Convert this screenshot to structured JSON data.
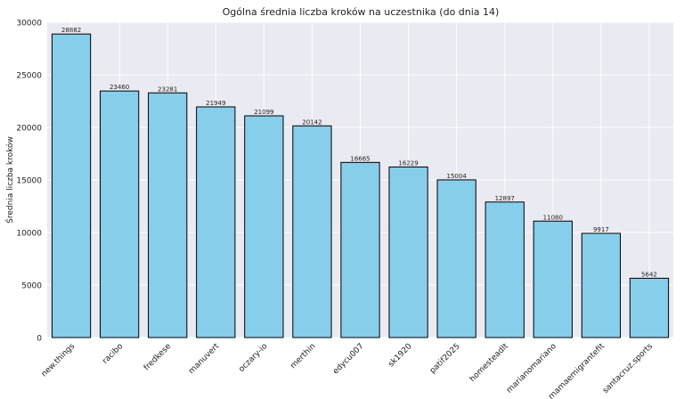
{
  "chart_data": {
    "type": "bar",
    "title": "Ogólna średnia liczba kroków na uczestnika (do dnia 14)",
    "xlabel": "",
    "ylabel": "Średnia liczba kroków",
    "ylim": [
      0,
      30000
    ],
    "yticks": [
      0,
      5000,
      10000,
      15000,
      20000,
      25000,
      30000
    ],
    "grid": true,
    "legend": "none",
    "categories": [
      "new.things",
      "racibo",
      "fredkese",
      "manuvert",
      "oczary-io",
      "merthin",
      "edycu007",
      "sk1920",
      "patif2025",
      "homesteadlt",
      "marianomariano",
      "mamaemigrantefit",
      "santacruz.sports"
    ],
    "values": [
      28882,
      23460,
      23281,
      21949,
      21099,
      20142,
      16665,
      16229,
      15004,
      12897,
      11080,
      9917,
      5642
    ],
    "data_labels": [
      "28882",
      "23460",
      "23281",
      "21949",
      "21099",
      "20142",
      "16665",
      "16229",
      "15004",
      "12897",
      "11080",
      "9917",
      "5642"
    ],
    "colors": {
      "bar_fill": "#87ceeb",
      "bar_edge": "#000000",
      "plot_background": "#eaeaf2",
      "grid": "#ffffff",
      "text": "#222222"
    }
  }
}
